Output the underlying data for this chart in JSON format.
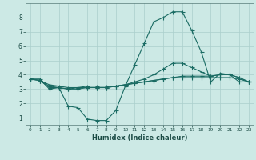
{
  "title": "",
  "xlabel": "Humidex (Indice chaleur)",
  "ylabel": "",
  "background_color": "#cce9e5",
  "line_color": "#1a6b63",
  "grid_color": "#aacfcc",
  "x_ticks": [
    0,
    1,
    2,
    3,
    4,
    5,
    6,
    7,
    8,
    9,
    10,
    11,
    12,
    13,
    14,
    15,
    16,
    17,
    18,
    19,
    20,
    21,
    22,
    23
  ],
  "y_ticks": [
    1,
    2,
    3,
    4,
    5,
    6,
    7,
    8
  ],
  "xlim": [
    -0.5,
    23.5
  ],
  "ylim": [
    0.5,
    9.0
  ],
  "series": [
    {
      "x": [
        0,
        1,
        2,
        3,
        4,
        5,
        6,
        7,
        8,
        9,
        10,
        11,
        12,
        13,
        14,
        15,
        16,
        17,
        18,
        19,
        20,
        21,
        22,
        23
      ],
      "y": [
        3.7,
        3.7,
        3.0,
        3.1,
        1.8,
        1.7,
        0.9,
        0.8,
        0.8,
        1.5,
        3.2,
        4.7,
        6.2,
        7.7,
        8.0,
        8.4,
        8.4,
        7.1,
        5.6,
        3.5,
        4.1,
        4.0,
        3.5,
        3.5
      ]
    },
    {
      "x": [
        0,
        1,
        2,
        3,
        4,
        5,
        6,
        7,
        8,
        9,
        10,
        11,
        12,
        13,
        14,
        15,
        16,
        17,
        18,
        19,
        20,
        21,
        22,
        23
      ],
      "y": [
        3.7,
        3.6,
        3.2,
        3.1,
        3.0,
        3.1,
        3.2,
        3.2,
        3.2,
        3.2,
        3.3,
        3.5,
        3.7,
        4.0,
        4.4,
        4.8,
        4.8,
        4.5,
        4.2,
        3.9,
        4.0,
        4.0,
        3.8,
        3.5
      ]
    },
    {
      "x": [
        0,
        1,
        2,
        3,
        4,
        5,
        6,
        7,
        8,
        9,
        10,
        11,
        12,
        13,
        14,
        15,
        16,
        17,
        18,
        19,
        20,
        21,
        22,
        23
      ],
      "y": [
        3.7,
        3.6,
        3.1,
        3.1,
        3.0,
        3.0,
        3.1,
        3.1,
        3.1,
        3.2,
        3.3,
        3.4,
        3.5,
        3.6,
        3.7,
        3.8,
        3.9,
        3.9,
        3.9,
        3.9,
        4.0,
        4.0,
        3.8,
        3.5
      ]
    },
    {
      "x": [
        0,
        1,
        2,
        3,
        4,
        5,
        6,
        7,
        8,
        9,
        10,
        11,
        12,
        13,
        14,
        15,
        16,
        17,
        18,
        19,
        20,
        21,
        22,
        23
      ],
      "y": [
        3.7,
        3.6,
        3.3,
        3.2,
        3.1,
        3.1,
        3.1,
        3.1,
        3.1,
        3.2,
        3.3,
        3.4,
        3.5,
        3.6,
        3.7,
        3.8,
        3.8,
        3.8,
        3.8,
        3.8,
        3.8,
        3.8,
        3.7,
        3.5
      ]
    }
  ]
}
